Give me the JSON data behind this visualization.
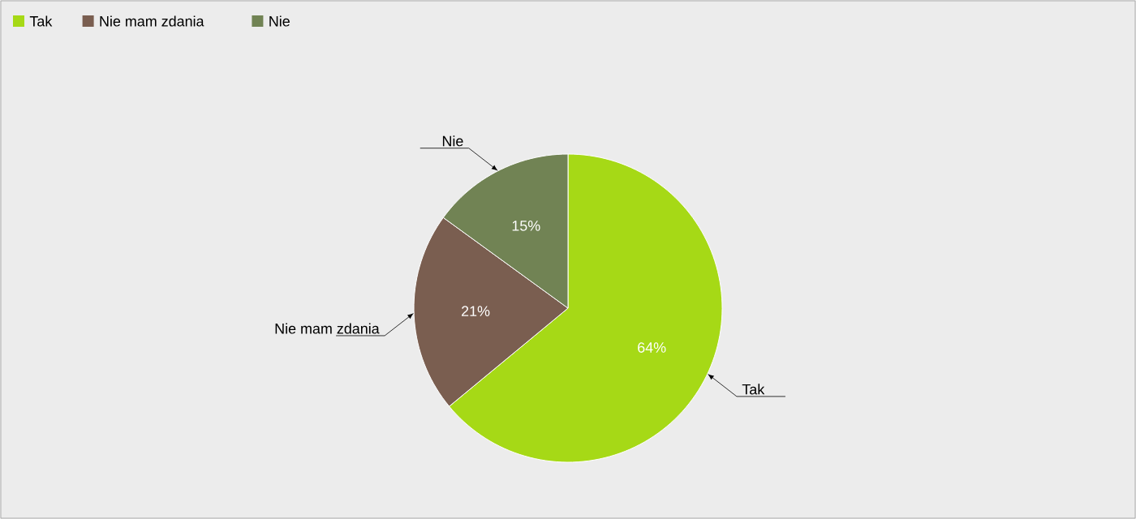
{
  "chart_data": {
    "type": "pie",
    "categories": [
      "Tak",
      "Nie mam zdania",
      "Nie"
    ],
    "values": [
      64,
      21,
      15
    ],
    "colors": [
      "#a6d916",
      "#7a5e50",
      "#718354"
    ],
    "value_labels": [
      "64%",
      "21%",
      "15%"
    ],
    "legend": "top left"
  }
}
